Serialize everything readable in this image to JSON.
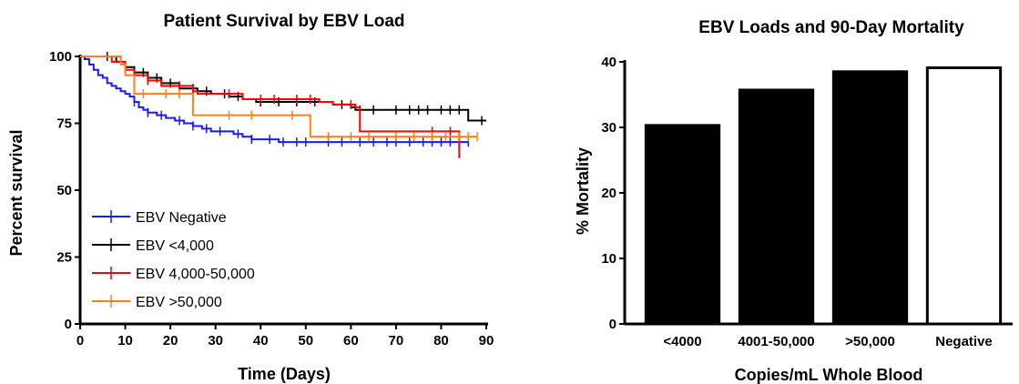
{
  "chart_data": [
    {
      "type": "line",
      "title": "Patient Survival by EBV Load",
      "xlabel": "Time (Days)",
      "ylabel": "Percent survival",
      "xlim": [
        0,
        90
      ],
      "ylim": [
        0,
        100
      ],
      "xticks": [
        "0",
        "10",
        "20",
        "30",
        "40",
        "50",
        "60",
        "70",
        "80",
        "90"
      ],
      "yticks": [
        "0",
        "25",
        "50",
        "75",
        "100"
      ],
      "grid": false,
      "legend": "bottom-left",
      "series": [
        {
          "name": "EBV Negative",
          "color": "#1a1aff",
          "steps": [
            [
              0,
              100
            ],
            [
              1,
              99
            ],
            [
              2,
              97
            ],
            [
              3,
              95
            ],
            [
              4,
              93
            ],
            [
              5,
              92
            ],
            [
              6,
              90
            ],
            [
              7,
              89
            ],
            [
              8,
              88
            ],
            [
              9,
              87
            ],
            [
              10,
              86
            ],
            [
              11,
              85
            ],
            [
              12,
              83
            ],
            [
              13,
              81
            ],
            [
              14,
              80
            ],
            [
              15,
              79
            ],
            [
              17,
              78
            ],
            [
              19,
              77
            ],
            [
              21,
              76
            ],
            [
              23,
              75
            ],
            [
              25,
              74
            ],
            [
              27,
              73
            ],
            [
              29,
              72
            ],
            [
              32,
              72
            ],
            [
              34,
              71
            ],
            [
              36,
              70
            ],
            [
              38,
              69
            ],
            [
              41,
              69
            ],
            [
              44,
              68
            ],
            [
              60,
              68
            ],
            [
              65,
              68
            ],
            [
              70,
              68
            ],
            [
              84,
              68
            ],
            [
              86,
              68
            ]
          ],
          "censors": [
            12,
            15,
            18,
            22,
            25,
            28,
            31,
            35,
            38,
            42,
            45,
            48,
            50,
            55,
            58,
            62,
            65,
            68,
            70,
            73,
            76,
            78,
            80,
            82,
            84,
            86
          ]
        },
        {
          "name": "EBV <4,000",
          "color": "#000000",
          "steps": [
            [
              0,
              100
            ],
            [
              5,
              100
            ],
            [
              8,
              98
            ],
            [
              10,
              96
            ],
            [
              12,
              94
            ],
            [
              15,
              92
            ],
            [
              18,
              90
            ],
            [
              22,
              88
            ],
            [
              26,
              87
            ],
            [
              29,
              86
            ],
            [
              33,
              85
            ],
            [
              36,
              84
            ],
            [
              39,
              83
            ],
            [
              55,
              83
            ],
            [
              56,
              82
            ],
            [
              60,
              81
            ],
            [
              61,
              80
            ],
            [
              85,
              80
            ],
            [
              86,
              76
            ],
            [
              90,
              76
            ]
          ],
          "censors": [
            6,
            10,
            14,
            17,
            20,
            25,
            28,
            32,
            35,
            40,
            44,
            48,
            52,
            58,
            62,
            65,
            70,
            73,
            75,
            77,
            80,
            82,
            84,
            89
          ]
        },
        {
          "name": "EBV 4,000-50,000",
          "color": "#ff0000",
          "steps": [
            [
              0,
              100
            ],
            [
              5,
              100
            ],
            [
              7,
              98
            ],
            [
              10,
              95
            ],
            [
              12,
              93
            ],
            [
              15,
              91
            ],
            [
              18,
              89
            ],
            [
              25,
              87
            ],
            [
              26,
              86
            ],
            [
              35,
              86
            ],
            [
              36,
              84
            ],
            [
              52,
              84
            ],
            [
              53,
              83
            ],
            [
              56,
              82
            ],
            [
              61,
              81
            ],
            [
              62,
              72
            ],
            [
              84,
              72
            ],
            [
              84,
              62
            ]
          ],
          "censors": [
            10,
            15,
            22,
            25,
            33,
            40,
            43,
            48,
            51,
            60,
            78,
            82
          ]
        },
        {
          "name": "EBV >50,000",
          "color": "#ff7f1a",
          "steps": [
            [
              0,
              100
            ],
            [
              8,
              100
            ],
            [
              9,
              97
            ],
            [
              10,
              93
            ],
            [
              12,
              86
            ],
            [
              25,
              86
            ],
            [
              25,
              78
            ],
            [
              51,
              78
            ],
            [
              51,
              70
            ],
            [
              88,
              70
            ]
          ],
          "censors": [
            14,
            19,
            22,
            33,
            38,
            47,
            55,
            60,
            64,
            70,
            74,
            78,
            81,
            84,
            86,
            88
          ]
        }
      ]
    },
    {
      "type": "bar",
      "title": "EBV Loads and 90-Day Mortality",
      "xlabel": "Copies/mL Whole Blood",
      "ylabel": "% Mortality",
      "ylim": [
        0,
        40
      ],
      "yticks": [
        "0",
        "10",
        "20",
        "30",
        "40"
      ],
      "categories": [
        "<4000",
        "4001-50,000",
        ">50,000",
        "Negative"
      ],
      "values": [
        30.3,
        35.7,
        38.5,
        39.1
      ],
      "bar_colors": [
        "#000000",
        "#000000",
        "#000000",
        "#ffffff"
      ],
      "grid": false
    }
  ]
}
